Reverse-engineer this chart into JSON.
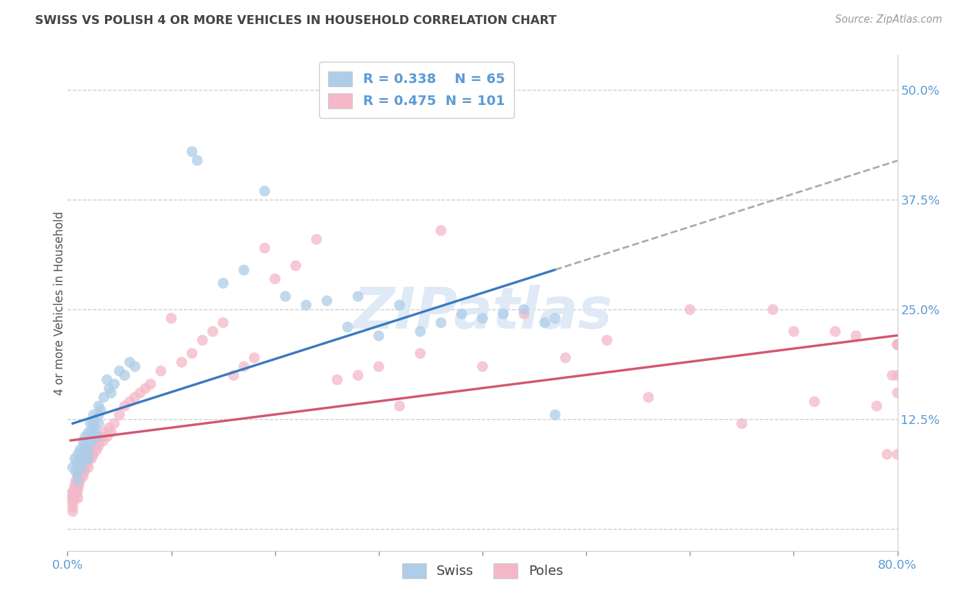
{
  "title": "SWISS VS POLISH 4 OR MORE VEHICLES IN HOUSEHOLD CORRELATION CHART",
  "source": "Source: ZipAtlas.com",
  "ylabel": "4 or more Vehicles in Household",
  "xlim": [
    0.0,
    0.8
  ],
  "ylim": [
    -0.025,
    0.54
  ],
  "xticks": [
    0.0,
    0.1,
    0.2,
    0.3,
    0.4,
    0.5,
    0.6,
    0.7,
    0.8
  ],
  "xticklabels": [
    "0.0%",
    "",
    "",
    "",
    "",
    "",
    "",
    "",
    "80.0%"
  ],
  "yticks_right": [
    0.0,
    0.125,
    0.25,
    0.375,
    0.5
  ],
  "yticklabels_right": [
    "",
    "12.5%",
    "25.0%",
    "37.5%",
    "50.0%"
  ],
  "legend_swiss_R": "R = 0.338",
  "legend_swiss_N": "N = 65",
  "legend_poles_R": "R = 0.475",
  "legend_poles_N": "N = 101",
  "swiss_color": "#aecde8",
  "poles_color": "#f4b8c8",
  "swiss_line_color": "#3a7abf",
  "poles_line_color": "#d45570",
  "trend_dashed_color": "#aaaaaa",
  "background_color": "#ffffff",
  "grid_color": "#cccccc",
  "watermark": "ZIPatlas",
  "title_color": "#444444",
  "axis_tick_color": "#5b9bd5",
  "swiss_x": [
    0.005,
    0.007,
    0.008,
    0.009,
    0.01,
    0.01,
    0.01,
    0.01,
    0.012,
    0.013,
    0.014,
    0.015,
    0.015,
    0.015,
    0.016,
    0.017,
    0.018,
    0.018,
    0.019,
    0.02,
    0.02,
    0.02,
    0.02,
    0.022,
    0.023,
    0.024,
    0.025,
    0.025,
    0.026,
    0.027,
    0.028,
    0.03,
    0.03,
    0.03,
    0.032,
    0.035,
    0.038,
    0.04,
    0.042,
    0.045,
    0.05,
    0.055,
    0.06,
    0.065,
    0.12,
    0.125,
    0.15,
    0.17,
    0.19,
    0.21,
    0.23,
    0.25,
    0.27,
    0.28,
    0.3,
    0.32,
    0.34,
    0.36,
    0.38,
    0.4,
    0.42,
    0.44,
    0.46,
    0.47,
    0.47
  ],
  "swiss_y": [
    0.07,
    0.08,
    0.065,
    0.075,
    0.085,
    0.075,
    0.065,
    0.055,
    0.09,
    0.08,
    0.07,
    0.1,
    0.09,
    0.08,
    0.095,
    0.105,
    0.09,
    0.08,
    0.085,
    0.11,
    0.1,
    0.09,
    0.08,
    0.12,
    0.11,
    0.1,
    0.13,
    0.12,
    0.115,
    0.11,
    0.105,
    0.14,
    0.13,
    0.12,
    0.135,
    0.15,
    0.17,
    0.16,
    0.155,
    0.165,
    0.18,
    0.175,
    0.19,
    0.185,
    0.43,
    0.42,
    0.28,
    0.295,
    0.385,
    0.265,
    0.255,
    0.26,
    0.23,
    0.265,
    0.22,
    0.255,
    0.225,
    0.235,
    0.245,
    0.24,
    0.245,
    0.25,
    0.235,
    0.24,
    0.13
  ],
  "poles_x": [
    0.003,
    0.004,
    0.005,
    0.005,
    0.005,
    0.006,
    0.006,
    0.007,
    0.007,
    0.008,
    0.008,
    0.009,
    0.009,
    0.01,
    0.01,
    0.01,
    0.01,
    0.011,
    0.011,
    0.012,
    0.012,
    0.013,
    0.013,
    0.014,
    0.015,
    0.015,
    0.015,
    0.016,
    0.016,
    0.017,
    0.017,
    0.018,
    0.019,
    0.02,
    0.02,
    0.02,
    0.021,
    0.022,
    0.023,
    0.024,
    0.025,
    0.025,
    0.027,
    0.028,
    0.03,
    0.03,
    0.032,
    0.034,
    0.036,
    0.038,
    0.04,
    0.042,
    0.045,
    0.05,
    0.055,
    0.06,
    0.065,
    0.07,
    0.075,
    0.08,
    0.09,
    0.1,
    0.11,
    0.12,
    0.13,
    0.14,
    0.15,
    0.16,
    0.17,
    0.18,
    0.19,
    0.2,
    0.22,
    0.24,
    0.26,
    0.28,
    0.3,
    0.32,
    0.34,
    0.36,
    0.4,
    0.44,
    0.48,
    0.52,
    0.56,
    0.6,
    0.65,
    0.68,
    0.7,
    0.72,
    0.74,
    0.76,
    0.78,
    0.79,
    0.795,
    0.8,
    0.8,
    0.8,
    0.8,
    0.8,
    0.8
  ],
  "poles_y": [
    0.04,
    0.035,
    0.03,
    0.025,
    0.02,
    0.045,
    0.04,
    0.05,
    0.035,
    0.055,
    0.04,
    0.05,
    0.04,
    0.06,
    0.055,
    0.045,
    0.035,
    0.065,
    0.05,
    0.07,
    0.055,
    0.075,
    0.06,
    0.07,
    0.08,
    0.07,
    0.06,
    0.08,
    0.065,
    0.085,
    0.07,
    0.085,
    0.075,
    0.09,
    0.08,
    0.07,
    0.085,
    0.09,
    0.08,
    0.085,
    0.095,
    0.085,
    0.095,
    0.09,
    0.1,
    0.095,
    0.105,
    0.1,
    0.11,
    0.105,
    0.115,
    0.11,
    0.12,
    0.13,
    0.14,
    0.145,
    0.15,
    0.155,
    0.16,
    0.165,
    0.18,
    0.24,
    0.19,
    0.2,
    0.215,
    0.225,
    0.235,
    0.175,
    0.185,
    0.195,
    0.32,
    0.285,
    0.3,
    0.33,
    0.17,
    0.175,
    0.185,
    0.14,
    0.2,
    0.34,
    0.185,
    0.245,
    0.195,
    0.215,
    0.15,
    0.25,
    0.12,
    0.25,
    0.225,
    0.145,
    0.225,
    0.22,
    0.14,
    0.085,
    0.175,
    0.21,
    0.155,
    0.085,
    0.175,
    0.21,
    0.21
  ]
}
